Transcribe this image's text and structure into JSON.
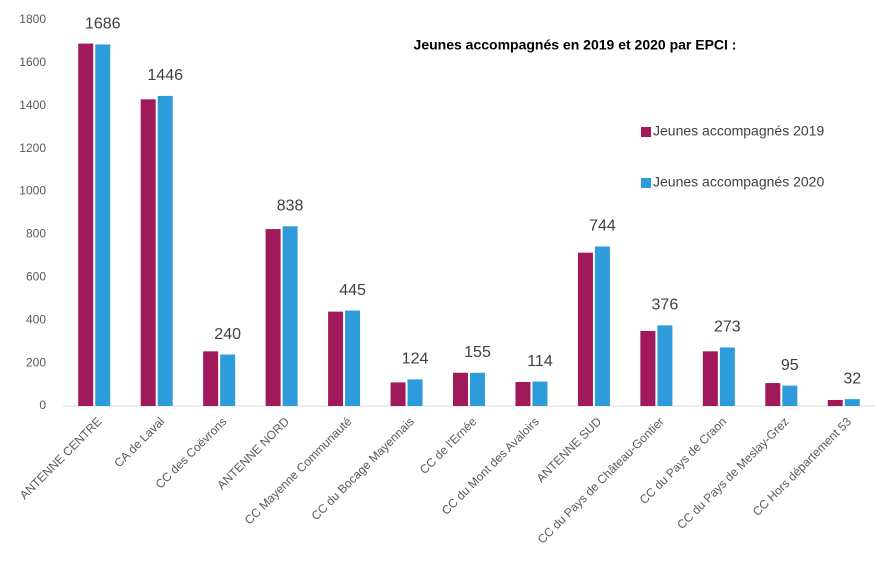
{
  "chart_data": {
    "type": "bar",
    "title": "Jeunes accompagnés en 2019 et 2020 par EPCI :",
    "categories": [
      "ANTENNE CENTRE",
      "CA de Laval",
      "CC des Coëvrons",
      "ANTENNE NORD",
      "CC Mayenne Communauté",
      "CC du Bocage Mayennais",
      "CC de l'Ernée",
      "CC du Mont des Avaloirs",
      "ANTENNE SUD",
      "CC du Pays de Château-Gontier",
      "CC du Pays de Craon",
      "CC du Pays de Meslay-Grez",
      "CC Hors département 53"
    ],
    "series": [
      {
        "name": "Jeunes accompagnés 2019",
        "color": "#a0195a",
        "data_labels": false,
        "values": [
          1690,
          1430,
          255,
          825,
          440,
          110,
          155,
          112,
          715,
          350,
          255,
          107,
          28
        ]
      },
      {
        "name": "Jeunes accompagnés 2020",
        "color": "#2e9bda",
        "data_labels": true,
        "values": [
          1686,
          1446,
          240,
          838,
          445,
          124,
          155,
          114,
          744,
          376,
          273,
          95,
          32
        ]
      }
    ],
    "ylim": [
      0,
      1800
    ],
    "yticks": [
      0,
      200,
      400,
      600,
      800,
      1000,
      1200,
      1400,
      1600,
      1800
    ],
    "grid": false,
    "legend": "right"
  }
}
